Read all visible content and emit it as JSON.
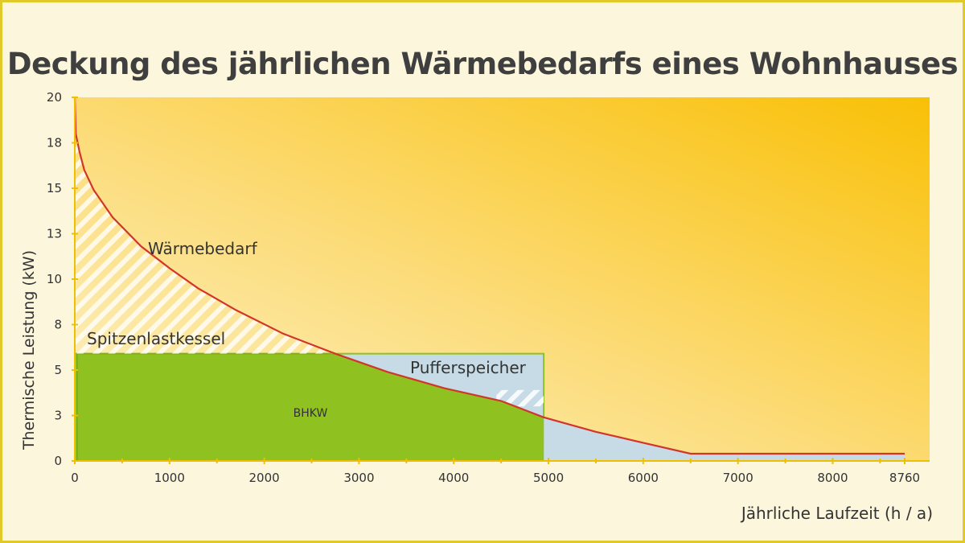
{
  "chart_data": {
    "type": "area",
    "title": "Deckung des jährlichen Wärmebedarfs eines Wohnhauses",
    "xlabel": "Jährliche Laufzeit (h / a)",
    "ylabel": "Thermische Leistung (kW)",
    "xlim": [
      0,
      8760
    ],
    "ylim": [
      0,
      20
    ],
    "x_ticks": [
      "0",
      "1000",
      "2000",
      "3000",
      "4000",
      "5000",
      "6000",
      "7000",
      "8000",
      "8760"
    ],
    "y_ticks": [
      "0",
      "3",
      "5",
      "8",
      "10",
      "13",
      "15",
      "18",
      "20"
    ],
    "series": [
      {
        "name": "Wärmebedarf",
        "x": [
          0,
          10,
          50,
          100,
          200,
          400,
          700,
          1000,
          1300,
          1700,
          2200,
          2750,
          3300,
          3900,
          4500,
          4950,
          5500,
          6000,
          6500,
          7000,
          8000,
          8760
        ],
        "y": [
          20,
          18,
          17,
          16,
          14.9,
          13.4,
          11.8,
          10.6,
          9.5,
          8.3,
          7.0,
          5.9,
          4.9,
          4.0,
          3.3,
          2.4,
          1.6,
          1.0,
          0.4,
          0.4,
          0.4,
          0.4
        ]
      }
    ],
    "regions": [
      {
        "name": "BHKW",
        "x": [
          0,
          4950
        ],
        "y": [
          0,
          5.9
        ]
      },
      {
        "name": "Pufferspeicher",
        "x": [
          2750,
          4950
        ],
        "y": [
          0,
          5.9
        ]
      },
      {
        "name": "Spitzenlastkessel",
        "x": [
          0,
          2750
        ],
        "y": [
          5.9,
          20
        ]
      }
    ],
    "grid": false,
    "colors": {
      "demand_curve": "#d2352a",
      "bhkw": "#8fc121",
      "pufferspeicher": "#c7dbe6",
      "background_light": "#fdf3c6",
      "background_dark": "#f9c006",
      "axis_ticks": "#f0c000"
    }
  }
}
